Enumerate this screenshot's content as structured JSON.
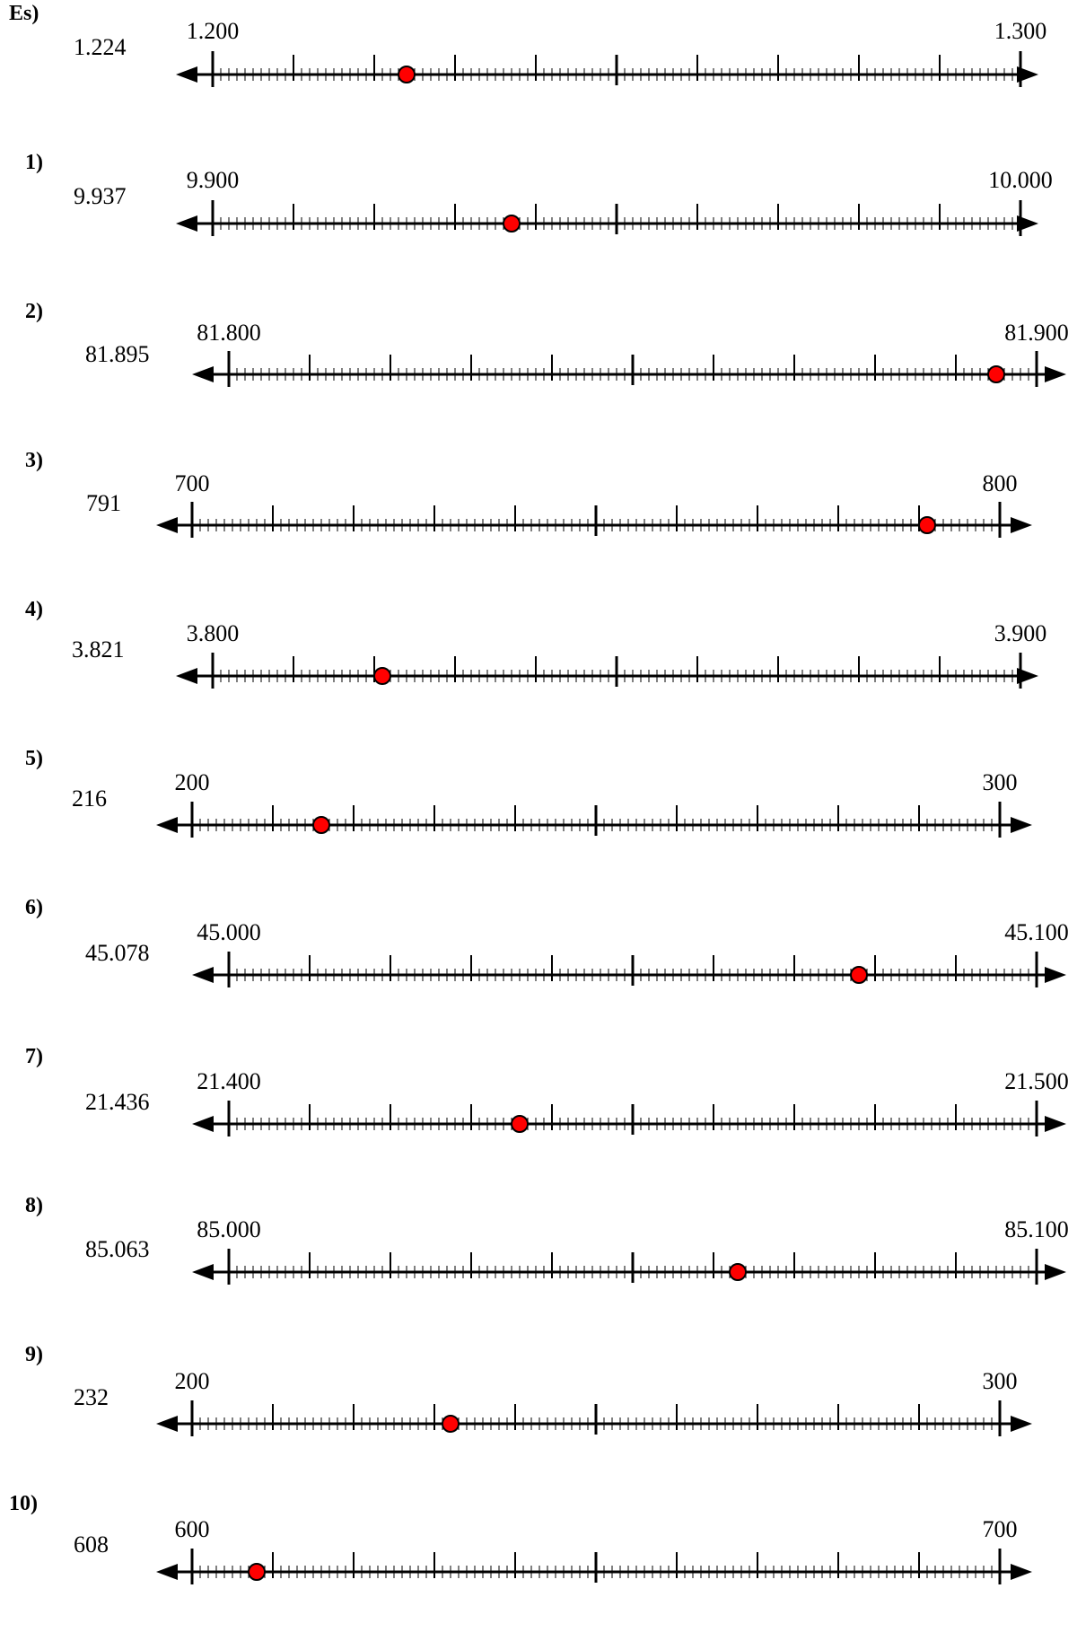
{
  "problems": [
    {
      "label": "Es)",
      "value": "1.224",
      "start": "1.200",
      "end": "1.300",
      "mark": 0.24
    },
    {
      "label": "1)",
      "value": "9.937",
      "start": "9.900",
      "end": "10.000",
      "mark": 0.37
    },
    {
      "label": "2)",
      "value": "81.895",
      "start": "81.800",
      "end": "81.900",
      "mark": 0.95
    },
    {
      "label": "3)",
      "value": "791",
      "start": "700",
      "end": "800",
      "mark": 0.91
    },
    {
      "label": "4)",
      "value": "3.821",
      "start": "3.800",
      "end": "3.900",
      "mark": 0.21
    },
    {
      "label": "5)",
      "value": "216",
      "start": "200",
      "end": "300",
      "mark": 0.16
    },
    {
      "label": "6)",
      "value": "45.078",
      "start": "45.000",
      "end": "45.100",
      "mark": 0.78
    },
    {
      "label": "7)",
      "value": "21.436",
      "start": "21.400",
      "end": "21.500",
      "mark": 0.36
    },
    {
      "label": "8)",
      "value": "85.063",
      "start": "85.000",
      "end": "85.100",
      "mark": 0.63
    },
    {
      "label": "9)",
      "value": "232",
      "start": "200",
      "end": "300",
      "mark": 0.32
    },
    {
      "label": "10)",
      "value": "608",
      "start": "600",
      "end": "700",
      "mark": 0.08
    }
  ],
  "colors": {
    "point": "#ff0000",
    "line": "#000000"
  }
}
